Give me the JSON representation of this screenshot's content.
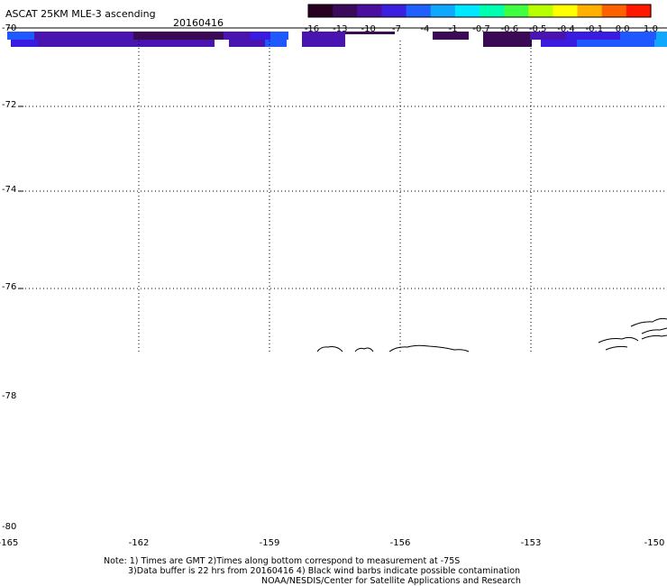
{
  "header": {
    "title": "ASCAT 25KM MLE-3 ascending",
    "date": "20160416"
  },
  "colorbar": {
    "labels": [
      "-16",
      "-13",
      "-10",
      "-7",
      "-4",
      "-1",
      "-0.7",
      "-0.6",
      "-0.5",
      "-0.4",
      "-0.1",
      "0.0",
      "1.0"
    ],
    "colors": [
      "#2a0020",
      "#3c0a5a",
      "#4b0fa0",
      "#3c20e0",
      "#1f60ff",
      "#10a8ff",
      "#00e8ff",
      "#00ffb0",
      "#40ff40",
      "#b8ff00",
      "#ffff00",
      "#ffb000",
      "#ff6000",
      "#ff1800"
    ]
  },
  "axes": {
    "y_labels": [
      "-70",
      "-72",
      "-74",
      "-76",
      "-78",
      "-80"
    ],
    "x_labels": [
      "-165",
      "-162",
      "-159",
      "-156",
      "-153",
      "-150"
    ]
  },
  "swath": {
    "colors": {
      "dark_purple": "#3a0a55",
      "purple": "#4a14b0",
      "indigo": "#3a1ce0",
      "blue": "#1f58ff",
      "cyan": "#10a8ff"
    }
  },
  "notes": {
    "line1": "Note: 1) Times are GMT 2)Times along bottom correspond to measurement at -75S",
    "line2": "3)Data buffer is 22 hrs from 20160416 4) Black wind barbs indicate possible contamination",
    "line3": "NOAA/NESDIS/Center for Satellite Applications and Research"
  }
}
